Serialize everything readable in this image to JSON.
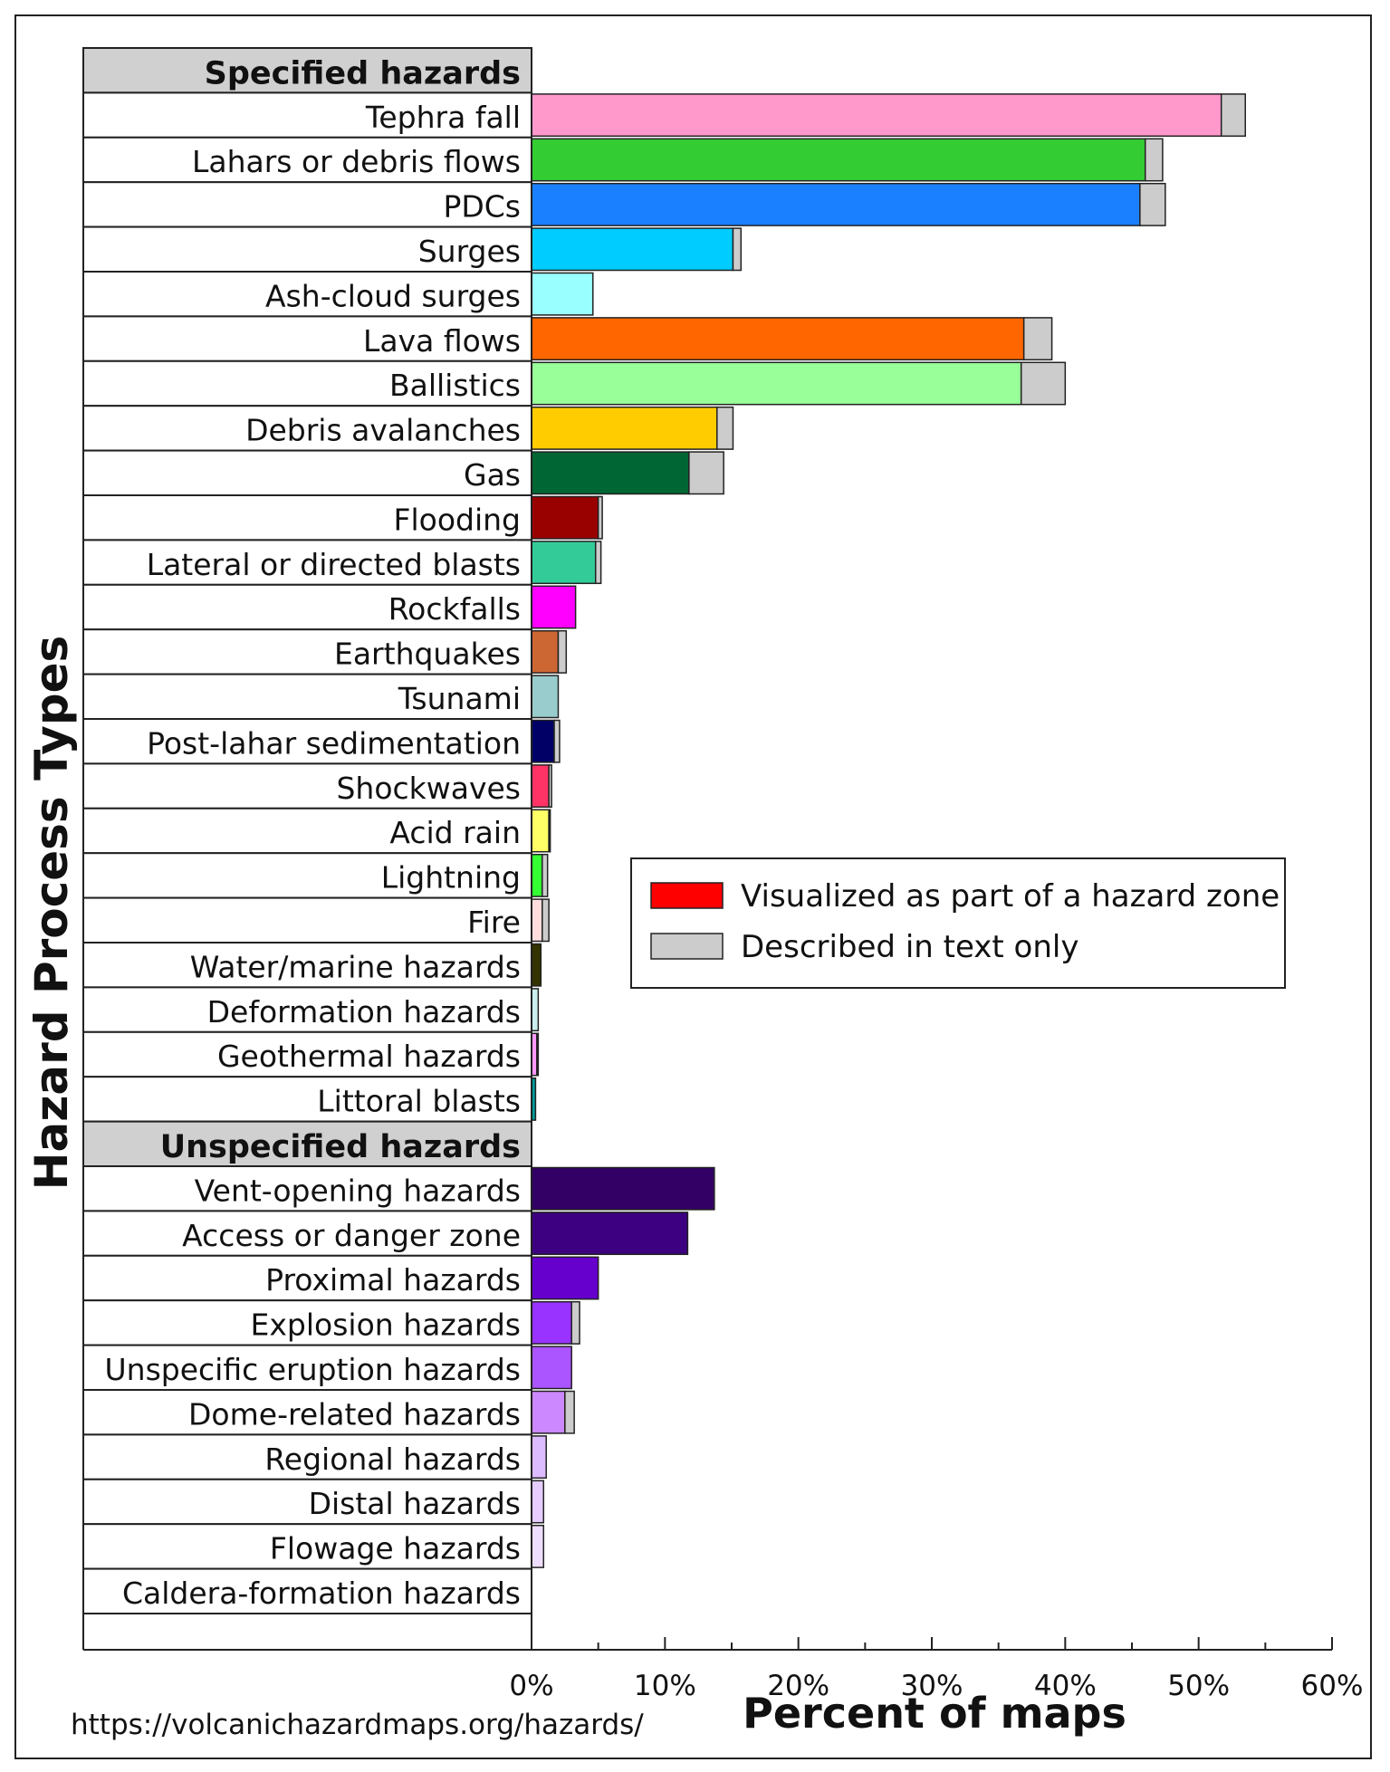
{
  "chart_data": {
    "type": "bar",
    "orientation": "horizontal",
    "stacked": true,
    "xlabel": "Percent of maps",
    "ylabel": "Hazard Process Types",
    "xlim": [
      0,
      60
    ],
    "xticks": [
      "0%",
      "10%",
      "20%",
      "30%",
      "40%",
      "50%",
      "60%"
    ],
    "legend": {
      "placement": "right-middle",
      "entries": [
        {
          "label": "Visualized as part of a hazard zone",
          "color": "#ff0000"
        },
        {
          "label": "Described in text only",
          "color": "#cccccc"
        }
      ]
    },
    "groups": [
      {
        "title": "Specified hazards",
        "items": [
          {
            "label": "Tephra fall",
            "visualized": 51.7,
            "text_only": 1.8,
            "color": "#ff99cc"
          },
          {
            "label": "Lahars or debris flows",
            "visualized": 46.0,
            "text_only": 1.3,
            "color": "#33cc33"
          },
          {
            "label": "PDCs",
            "visualized": 45.6,
            "text_only": 1.9,
            "color": "#1a80ff"
          },
          {
            "label": "Surges",
            "visualized": 15.1,
            "text_only": 0.6,
            "color": "#00ccff"
          },
          {
            "label": "Ash-cloud surges",
            "visualized": 4.6,
            "text_only": 0.0,
            "color": "#99ffff"
          },
          {
            "label": "Lava flows",
            "visualized": 36.9,
            "text_only": 2.1,
            "color": "#ff6600"
          },
          {
            "label": "Ballistics",
            "visualized": 36.7,
            "text_only": 3.3,
            "color": "#99ff99"
          },
          {
            "label": "Debris avalanches",
            "visualized": 13.9,
            "text_only": 1.2,
            "color": "#ffcc00"
          },
          {
            "label": "Gas",
            "visualized": 11.8,
            "text_only": 2.6,
            "color": "#006633"
          },
          {
            "label": "Flooding",
            "visualized": 5.0,
            "text_only": 0.3,
            "color": "#990000"
          },
          {
            "label": "Lateral or directed blasts",
            "visualized": 4.8,
            "text_only": 0.4,
            "color": "#33cc99"
          },
          {
            "label": "Rockfalls",
            "visualized": 3.3,
            "text_only": 0.0,
            "color": "#ff00ff"
          },
          {
            "label": "Earthquakes",
            "visualized": 2.0,
            "text_only": 0.6,
            "color": "#cc6633"
          },
          {
            "label": "Tsunami",
            "visualized": 2.0,
            "text_only": 0.0,
            "color": "#99cccc"
          },
          {
            "label": "Post-lahar sedimentation",
            "visualized": 1.7,
            "text_only": 0.4,
            "color": "#000066"
          },
          {
            "label": "Shockwaves",
            "visualized": 1.3,
            "text_only": 0.2,
            "color": "#ff3366"
          },
          {
            "label": "Acid rain",
            "visualized": 1.3,
            "text_only": 0.1,
            "color": "#ffff66"
          },
          {
            "label": "Lightning",
            "visualized": 0.8,
            "text_only": 0.4,
            "color": "#33ff33"
          },
          {
            "label": "Fire",
            "visualized": 0.8,
            "text_only": 0.5,
            "color": "#ffdddd"
          },
          {
            "label": "Water/marine hazards",
            "visualized": 0.7,
            "text_only": 0.0,
            "color": "#333300"
          },
          {
            "label": "Deformation hazards",
            "visualized": 0.5,
            "text_only": 0.0,
            "color": "#cceeee"
          },
          {
            "label": "Geothermal hazards",
            "visualized": 0.4,
            "text_only": 0.1,
            "color": "#ff99ff"
          },
          {
            "label": "Littoral blasts",
            "visualized": 0.3,
            "text_only": 0.0,
            "color": "#009999"
          }
        ]
      },
      {
        "title": "Unspecified hazards",
        "items": [
          {
            "label": "Vent-opening hazards",
            "visualized": 13.7,
            "text_only": 0.0,
            "color": "#330066"
          },
          {
            "label": "Access or danger zone",
            "visualized": 11.7,
            "text_only": 0.0,
            "color": "#3d0080"
          },
          {
            "label": "Proximal hazards",
            "visualized": 5.0,
            "text_only": 0.0,
            "color": "#6600cc"
          },
          {
            "label": "Explosion hazards",
            "visualized": 3.0,
            "text_only": 0.6,
            "color": "#9933ff"
          },
          {
            "label": "Unspecific eruption hazards",
            "visualized": 3.0,
            "text_only": 0.0,
            "color": "#aa55ff"
          },
          {
            "label": "Dome-related hazards",
            "visualized": 2.5,
            "text_only": 0.7,
            "color": "#cc88ff"
          },
          {
            "label": "Regional hazards",
            "visualized": 1.1,
            "text_only": 0.0,
            "color": "#ddbbff"
          },
          {
            "label": "Distal hazards",
            "visualized": 0.9,
            "text_only": 0.0,
            "color": "#e6ccff"
          },
          {
            "label": "Flowage hazards",
            "visualized": 0.9,
            "text_only": 0.0,
            "color": "#eeddff"
          },
          {
            "label": "Caldera-formation hazards",
            "visualized": 0.0,
            "text_only": 0.0,
            "color": "#f2e6ff"
          }
        ]
      }
    ],
    "source_note": "https://volcanichazardmaps.org/hazards/"
  }
}
